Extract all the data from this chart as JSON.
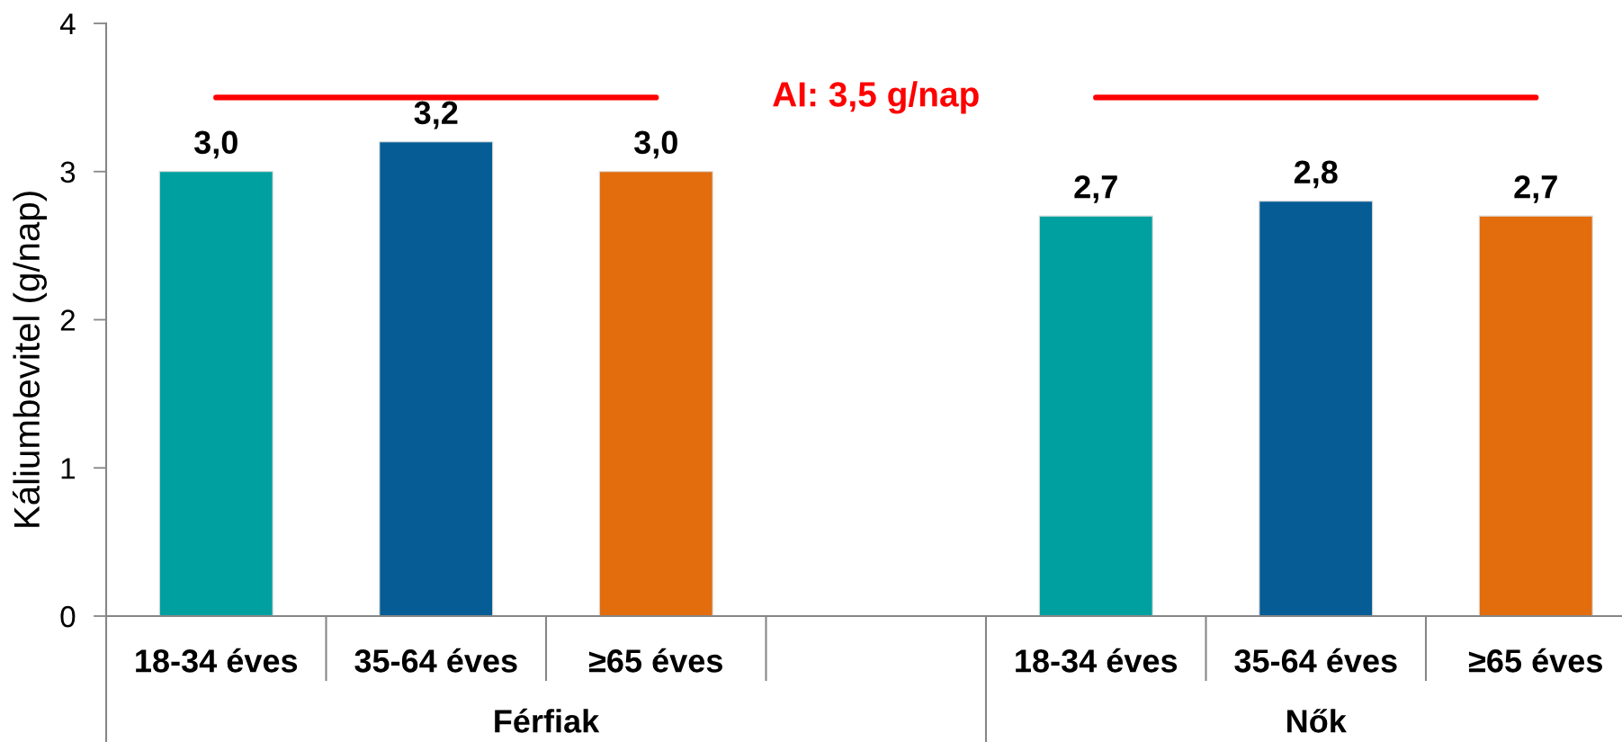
{
  "chart_data": {
    "type": "bar",
    "ylabel": "Káliumbevitel (g/nap)",
    "categories": [
      "18-34 éves",
      "35-64 éves",
      "≥65 éves",
      null,
      "18-34 éves",
      "35-64 éves",
      "≥65 éves"
    ],
    "values": [
      3.0,
      3.2,
      3.0,
      null,
      2.7,
      2.8,
      2.7
    ],
    "colors": [
      "#00a0a0",
      "#065c94",
      "#e36c0d",
      null,
      "#00a0a0",
      "#065c94",
      "#e36c0d"
    ],
    "value_labels": [
      "3,0",
      "3,2",
      "3,0",
      null,
      "2,7",
      "2,8",
      "2,7"
    ],
    "ylim": [
      0,
      4
    ],
    "yticks": [
      0,
      1,
      2,
      3,
      4
    ],
    "ref_lines": [
      {
        "axis": "y",
        "value": 3.5,
        "label": "AI: 3,5 g/nap",
        "color": "#ff0000"
      }
    ],
    "annotations": [
      "Férfiak",
      "Nők"
    ]
  }
}
